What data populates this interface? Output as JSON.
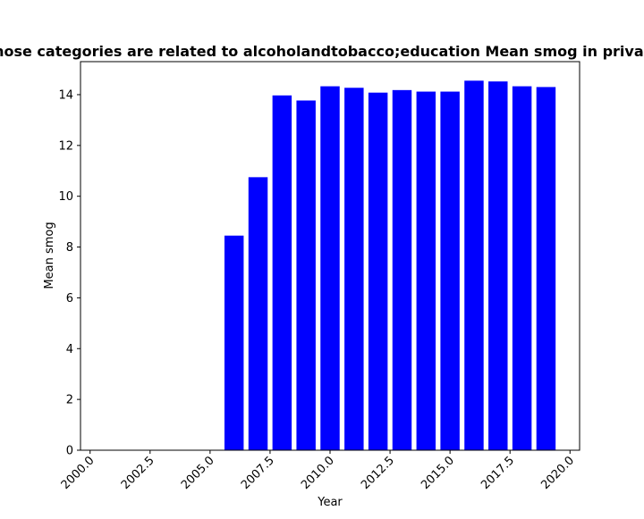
{
  "chart_data": {
    "type": "bar",
    "title": "Privacy policies whose categories are related to alcoholandtobacco;education Mean smog in privacy policies over time",
    "xlabel": "Year",
    "ylabel": "Mean smog",
    "x": [
      2006,
      2007,
      2008,
      2009,
      2010,
      2011,
      2012,
      2013,
      2014,
      2015,
      2016,
      2017,
      2018,
      2019
    ],
    "values": [
      8.45,
      10.75,
      13.97,
      13.77,
      14.33,
      14.27,
      14.08,
      14.18,
      14.12,
      14.12,
      14.55,
      14.52,
      14.33,
      14.3
    ],
    "xlim": [
      1999.6,
      2020.4
    ],
    "ylim": [
      0,
      15.3
    ],
    "xticks": [
      "2000.0",
      "2002.5",
      "2005.0",
      "2007.5",
      "2010.0",
      "2012.5",
      "2015.0",
      "2017.5",
      "2020.0"
    ],
    "xtick_values": [
      2000,
      2002.5,
      2005,
      2007.5,
      2010,
      2012.5,
      2015,
      2017.5,
      2020
    ],
    "yticks": [
      "0",
      "2",
      "4",
      "6",
      "8",
      "10",
      "12",
      "14"
    ],
    "ytick_values": [
      0,
      2,
      4,
      6,
      8,
      10,
      12,
      14
    ],
    "bar_color": "#0000ff",
    "grid": false,
    "legend": "none"
  }
}
